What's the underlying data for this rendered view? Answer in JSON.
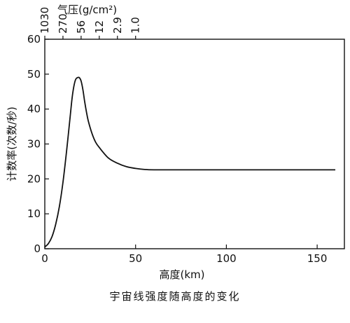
{
  "chart_data": {
    "type": "line",
    "title": "",
    "caption": "宇宙线强度随高度的变化",
    "xlabel": "高度(km)",
    "ylabel": "计数率(次数/秒)",
    "top_axis_label": "气压(g/cm²)",
    "xlim": [
      0,
      165
    ],
    "ylim": [
      0,
      60
    ],
    "x_ticks": [
      0,
      50,
      100,
      150
    ],
    "y_ticks": [
      0,
      10,
      20,
      30,
      40,
      50,
      60
    ],
    "top_ticks": [
      {
        "label": "1030",
        "x": 0
      },
      {
        "label": "270",
        "x": 10
      },
      {
        "label": "56",
        "x": 20
      },
      {
        "label": "12",
        "x": 30
      },
      {
        "label": "2.9",
        "x": 40
      },
      {
        "label": "1.0",
        "x": 50
      }
    ],
    "grid": false,
    "series": [
      {
        "name": "",
        "x": [
          0,
          2,
          4,
          6,
          8,
          10,
          12,
          14,
          15,
          16,
          17,
          18,
          19,
          20,
          21,
          22,
          23,
          24,
          26,
          28,
          30,
          35,
          40,
          45,
          50,
          55,
          60,
          70,
          80,
          100,
          120,
          140,
          160
        ],
        "y": [
          0.5,
          1.5,
          3.5,
          7,
          12,
          19,
          28,
          38,
          43,
          46.5,
          48.5,
          49,
          49,
          48,
          45.5,
          42,
          39,
          36.5,
          33,
          30.5,
          29,
          26,
          24.5,
          23.5,
          23,
          22.7,
          22.6,
          22.6,
          22.6,
          22.6,
          22.6,
          22.6,
          22.6
        ]
      }
    ]
  },
  "style": {
    "line_color": "#111111",
    "axis_color": "#111111",
    "background": "#ffffff"
  }
}
